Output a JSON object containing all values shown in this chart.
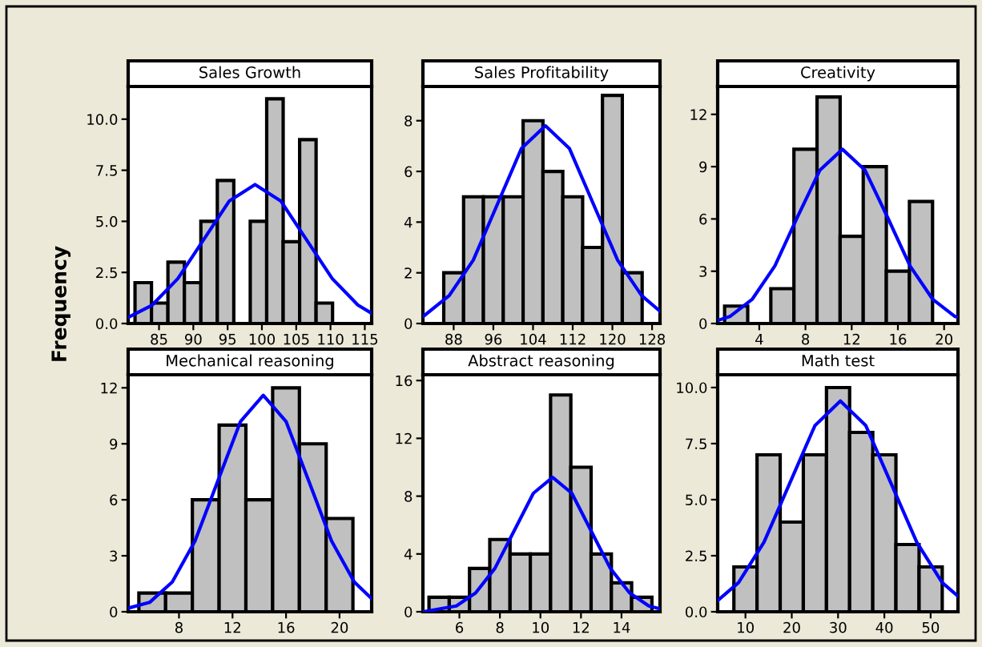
{
  "chart_data": [
    {
      "type": "histogram",
      "title": "Sales Growth",
      "ylabel": "Frequency",
      "bins": [
        81.5,
        83.9,
        86.3,
        88.7,
        91.1,
        93.5,
        95.9,
        98.3,
        100.7,
        103.1,
        105.5,
        107.9,
        110.3
      ],
      "values": [
        2,
        1,
        3,
        2,
        5,
        7,
        0,
        5,
        11,
        4,
        9,
        1
      ],
      "color": "#c0c0c0",
      "xlim": [
        80.5,
        116
      ],
      "xticks": [
        85,
        90,
        95,
        100,
        105,
        110,
        115
      ],
      "ylim": [
        0,
        11.6
      ],
      "yticks": [
        {
          "value": 0,
          "label": "0.0"
        },
        {
          "value": 2.5,
          "label": "2.5"
        },
        {
          "value": 5,
          "label": "5.0"
        },
        {
          "value": 7.5,
          "label": "7.5"
        },
        {
          "value": 10,
          "label": "10.0"
        }
      ],
      "grid": false,
      "legend": false,
      "series": [
        {
          "type": "line",
          "color": "#0000ff",
          "x": [
            80.5,
            84,
            87.75,
            91.5,
            95.25,
            99,
            102.75,
            106.5,
            110.25,
            114,
            116
          ],
          "values": [
            0.3,
            0.9,
            2.2,
            4.1,
            6.0,
            6.8,
            6.0,
            4.1,
            2.2,
            0.9,
            0.5
          ]
        }
      ]
    },
    {
      "type": "histogram",
      "title": "Sales Profitability",
      "bins": [
        86,
        90,
        94,
        98,
        102,
        106,
        110,
        114,
        118,
        122,
        126
      ],
      "values": [
        2,
        5,
        5,
        5,
        8,
        6,
        5,
        3,
        9,
        2
      ],
      "color": "#c0c0c0",
      "xlim": [
        81.8,
        129.6
      ],
      "xticks": [
        88,
        96,
        104,
        112,
        120,
        128
      ],
      "ylim": [
        0,
        9.35
      ],
      "yticks": [
        0,
        2,
        4,
        6,
        8
      ],
      "grid": false,
      "legend": false,
      "series": [
        {
          "type": "line",
          "color": "#0000ff",
          "x": [
            82,
            87.1,
            91.95,
            96.8,
            101.65,
            106.5,
            111.35,
            116.2,
            121.05,
            125.9,
            129.5
          ],
          "values": [
            0.3,
            1.1,
            2.5,
            4.7,
            6.9,
            7.8,
            6.9,
            4.7,
            2.5,
            1.1,
            0.5
          ]
        }
      ]
    },
    {
      "type": "histogram",
      "title": "Creativity",
      "bins": [
        1,
        3,
        5,
        7,
        9,
        11,
        13,
        15,
        17,
        19
      ],
      "values": [
        1,
        0,
        2,
        10,
        13,
        5,
        9,
        3,
        7
      ],
      "color": "#c0c0c0",
      "xlim": [
        0.4,
        21.2
      ],
      "xticks": [
        4,
        8,
        12,
        16,
        20
      ],
      "ylim": [
        0,
        13.6
      ],
      "yticks": [
        0,
        3,
        6,
        9,
        12
      ],
      "grid": false,
      "legend": false,
      "series": [
        {
          "type": "line",
          "color": "#0000ff",
          "x": [
            0.5,
            1.45,
            3.4,
            5.35,
            7.3,
            9.25,
            11.2,
            13.15,
            15.1,
            17.05,
            19.0,
            20.95,
            21.2
          ],
          "values": [
            0.2,
            0.4,
            1.4,
            3.3,
            6.1,
            8.8,
            10,
            8.8,
            6.1,
            3.3,
            1.4,
            0.4,
            0.4
          ]
        }
      ]
    },
    {
      "type": "histogram",
      "title": "Mechanical reasoning",
      "bins": [
        5,
        7,
        9,
        11,
        13,
        15,
        17,
        19,
        21
      ],
      "values": [
        1,
        1,
        6,
        10,
        6,
        12,
        9,
        5
      ],
      "color": "#c0c0c0",
      "xlim": [
        4.2,
        22.4
      ],
      "xticks": [
        8,
        12,
        16,
        20
      ],
      "ylim": [
        0,
        12.7
      ],
      "yticks": [
        0,
        3,
        6,
        9,
        12
      ],
      "grid": false,
      "legend": false,
      "series": [
        {
          "type": "line",
          "color": "#0000ff",
          "x": [
            4.24,
            5.8,
            7.5,
            9.2,
            10.9,
            12.6,
            14.3,
            16.0,
            17.7,
            19.4,
            21.1,
            22.4
          ],
          "values": [
            0.2,
            0.5,
            1.6,
            3.8,
            7.0,
            10.2,
            11.6,
            10.2,
            7.0,
            3.8,
            1.6,
            0.7
          ]
        }
      ]
    },
    {
      "type": "histogram",
      "title": "Abstract reasoning",
      "bins": [
        4.5,
        5.5,
        6.5,
        7.5,
        8.5,
        9.5,
        10.5,
        11.5,
        12.5,
        13.5,
        14.5,
        15.5
      ],
      "values": [
        1,
        1,
        3,
        5,
        4,
        4,
        15,
        10,
        4,
        2,
        1
      ],
      "color": "#c0c0c0",
      "xlim": [
        4.2,
        15.9
      ],
      "xticks": [
        6,
        8,
        10,
        12,
        14
      ],
      "ylim": [
        0,
        16.4
      ],
      "yticks": [
        0,
        4,
        8,
        12,
        16
      ],
      "grid": false,
      "legend": false,
      "series": [
        {
          "type": "line",
          "color": "#0000ff",
          "x": [
            4.2,
            5.85,
            6.8,
            7.75,
            8.7,
            9.65,
            10.6,
            11.55,
            12.5,
            13.45,
            14.4,
            15.35,
            15.9
          ],
          "values": [
            0.0,
            0.4,
            1.3,
            3.0,
            5.6,
            8.2,
            9.3,
            8.2,
            5.6,
            3.0,
            1.3,
            0.4,
            0.2
          ]
        }
      ]
    },
    {
      "type": "histogram",
      "title": "Math test",
      "bins": [
        7.5,
        12.5,
        17.5,
        22.5,
        27.5,
        32.5,
        37.5,
        42.5,
        47.5,
        52.5
      ],
      "values": [
        2,
        7,
        4,
        7,
        10,
        8,
        7,
        3,
        2
      ],
      "color": "#c0c0c0",
      "xlim": [
        4.0,
        55.9
      ],
      "xticks": [
        10,
        20,
        30,
        40,
        50
      ],
      "ylim": [
        0,
        10.57
      ],
      "yticks": [
        {
          "value": 0,
          "label": "0.0"
        },
        {
          "value": 2.5,
          "label": "2.5"
        },
        {
          "value": 5,
          "label": "5.0"
        },
        {
          "value": 7.5,
          "label": "7.5"
        },
        {
          "value": 10,
          "label": "10.0"
        }
      ],
      "grid": false,
      "legend": false,
      "series": [
        {
          "type": "line",
          "color": "#0000ff",
          "x": [
            4.0,
            8.5,
            14,
            19.5,
            25,
            30.5,
            36,
            41.5,
            47,
            52.5,
            55.9
          ],
          "values": [
            0.5,
            1.3,
            3.1,
            5.7,
            8.3,
            9.4,
            8.3,
            5.7,
            3.1,
            1.3,
            0.7
          ]
        }
      ]
    }
  ]
}
